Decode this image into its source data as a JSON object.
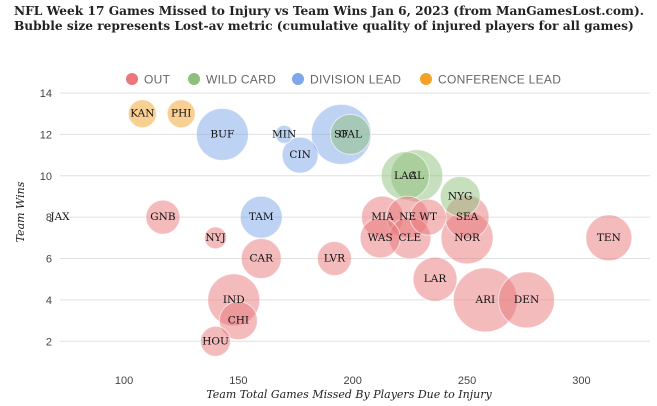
{
  "title": "NFL Week 17 Games Missed to Injury vs Team Wins Jan 6, 2023 (from ManGamesLost.com). Bubble size represents Lost-av metric (cumulative quality of injured players for all games)",
  "chart_data": {
    "type": "bubble",
    "xlabel": "Team Total Games Missed By Players Due to Injury",
    "ylabel": "Team Wins",
    "xlim": [
      72,
      330
    ],
    "ylim": [
      1,
      15.5
    ],
    "xticks": [
      100,
      150,
      200,
      250,
      300
    ],
    "yticks": [
      2,
      4,
      6,
      8,
      10,
      12,
      14
    ],
    "grid": "horizontal",
    "legend_position": "top",
    "categories": [
      {
        "key": "out",
        "name": "OUT",
        "color": "#e8787a"
      },
      {
        "key": "wild",
        "name": "WILD CARD",
        "color": "#8ec07c"
      },
      {
        "key": "div",
        "name": "DIVISION LEAD",
        "color": "#7ea6e8"
      },
      {
        "key": "conf",
        "name": "CONFERENCE LEAD",
        "color": "#f4a127"
      }
    ],
    "points": [
      {
        "team": "KAN",
        "x": 108,
        "y": 13,
        "size": 14,
        "category": "conf"
      },
      {
        "team": "PHI",
        "x": 125,
        "y": 13,
        "size": 14,
        "category": "conf"
      },
      {
        "team": "BUF",
        "x": 143,
        "y": 12,
        "size": 26,
        "category": "div"
      },
      {
        "team": "MIN",
        "x": 170,
        "y": 12,
        "size": 9,
        "category": "div"
      },
      {
        "team": "SF",
        "x": 195,
        "y": 12,
        "size": 30,
        "category": "div"
      },
      {
        "team": "OAL",
        "x": 199,
        "y": 12,
        "size": 20,
        "category": "wild"
      },
      {
        "team": "CIN",
        "x": 177,
        "y": 11,
        "size": 18,
        "category": "div"
      },
      {
        "team": "LAC",
        "x": 223,
        "y": 10,
        "size": 24,
        "category": "wild"
      },
      {
        "team": "AL",
        "x": 228,
        "y": 10,
        "size": 26,
        "category": "wild"
      },
      {
        "team": "NYG",
        "x": 247,
        "y": 9,
        "size": 20,
        "category": "wild"
      },
      {
        "team": "JAX",
        "x": 72,
        "y": 8,
        "size": 0,
        "category": "div"
      },
      {
        "team": "GNB",
        "x": 117,
        "y": 8,
        "size": 17,
        "category": "out"
      },
      {
        "team": "TAM",
        "x": 160,
        "y": 8,
        "size": 21,
        "category": "div"
      },
      {
        "team": "MIA",
        "x": 213,
        "y": 8,
        "size": 21,
        "category": "out"
      },
      {
        "team": "NE",
        "x": 224,
        "y": 8,
        "size": 21,
        "category": "out"
      },
      {
        "team": "WT",
        "x": 233,
        "y": 8,
        "size": 18,
        "category": "out"
      },
      {
        "team": "SEA",
        "x": 250,
        "y": 8,
        "size": 22,
        "category": "out"
      },
      {
        "team": "NYJ",
        "x": 140,
        "y": 7,
        "size": 11,
        "category": "out"
      },
      {
        "team": "WAS",
        "x": 212,
        "y": 7,
        "size": 20,
        "category": "out"
      },
      {
        "team": "CLE",
        "x": 225,
        "y": 7,
        "size": 21,
        "category": "out"
      },
      {
        "team": "NOR",
        "x": 250,
        "y": 7,
        "size": 26,
        "category": "out"
      },
      {
        "team": "TEN",
        "x": 312,
        "y": 7,
        "size": 23,
        "category": "out"
      },
      {
        "team": "CAR",
        "x": 160,
        "y": 6,
        "size": 20,
        "category": "out"
      },
      {
        "team": "LVR",
        "x": 192,
        "y": 6,
        "size": 17,
        "category": "out"
      },
      {
        "team": "LAR",
        "x": 236,
        "y": 5,
        "size": 22,
        "category": "out"
      },
      {
        "team": "IND",
        "x": 148,
        "y": 4,
        "size": 26,
        "category": "out"
      },
      {
        "team": "ARI",
        "x": 258,
        "y": 4,
        "size": 32,
        "category": "out"
      },
      {
        "team": "DEN",
        "x": 276,
        "y": 4,
        "size": 28,
        "category": "out"
      },
      {
        "team": "CHI",
        "x": 150,
        "y": 3,
        "size": 19,
        "category": "out"
      },
      {
        "team": "HOU",
        "x": 140,
        "y": 2,
        "size": 15,
        "category": "out"
      }
    ]
  }
}
